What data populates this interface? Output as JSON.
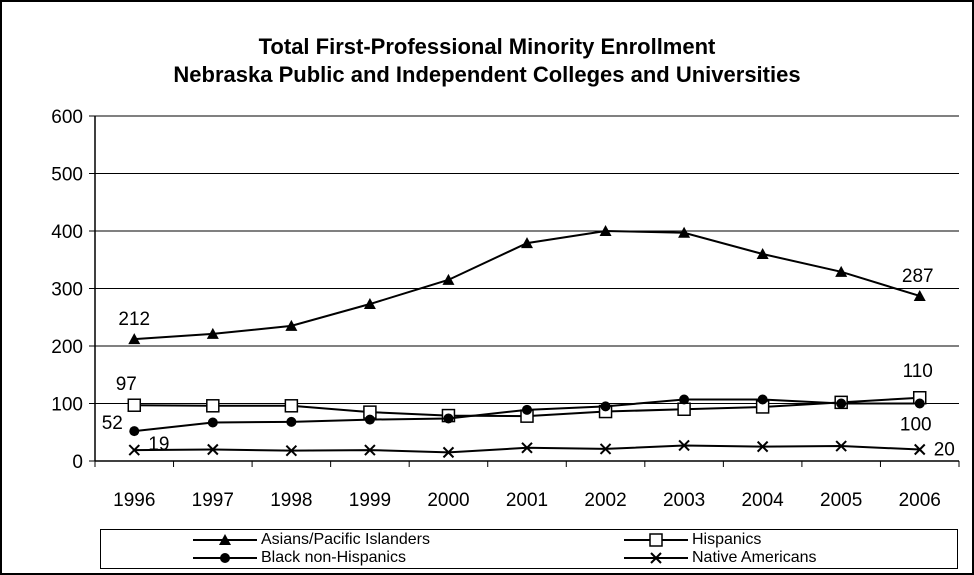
{
  "chart_data": {
    "type": "line",
    "title_lines": [
      "Total First-Professional Minority Enrollment",
      "Nebraska Public and Independent Colleges and Universities"
    ],
    "xlabel": "",
    "ylabel": "",
    "categories": [
      "1996",
      "1997",
      "1998",
      "1999",
      "2000",
      "2001",
      "2002",
      "2003",
      "2004",
      "2005",
      "2006"
    ],
    "ylim": [
      0,
      600
    ],
    "yticks": [
      0,
      100,
      200,
      300,
      400,
      500,
      600
    ],
    "grid": "horizontal",
    "legend_position": "bottom",
    "series": [
      {
        "name": "Asians/Pacific Islanders",
        "marker": "filled-triangle",
        "values": [
          212,
          221,
          235,
          273,
          315,
          379,
          400,
          397,
          360,
          329,
          287
        ],
        "labels": [
          {
            "index": 0,
            "text": "212"
          },
          {
            "index": 10,
            "text": "287"
          }
        ]
      },
      {
        "name": "Hispanics",
        "marker": "open-square",
        "values": [
          97,
          96,
          96,
          85,
          79,
          78,
          86,
          90,
          94,
          102,
          110
        ],
        "labels": [
          {
            "index": 0,
            "text": "97"
          },
          {
            "index": 10,
            "text": "110"
          }
        ]
      },
      {
        "name": "Black non-Hispanics",
        "marker": "filled-circle",
        "values": [
          52,
          67,
          68,
          72,
          74,
          89,
          95,
          107,
          107,
          100,
          100
        ],
        "labels": [
          {
            "index": 0,
            "text": "52"
          },
          {
            "index": 10,
            "text": "100"
          }
        ]
      },
      {
        "name": "Native Americans",
        "marker": "x",
        "values": [
          19,
          20,
          18,
          19,
          15,
          23,
          21,
          27,
          25,
          26,
          20
        ],
        "labels": [
          {
            "index": 0,
            "text": "19"
          },
          {
            "index": 10,
            "text": "20"
          }
        ]
      }
    ]
  }
}
